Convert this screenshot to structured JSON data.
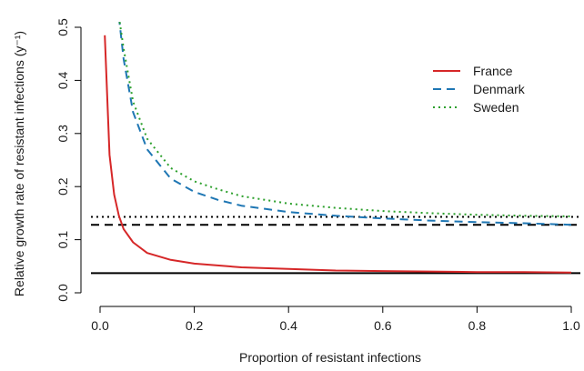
{
  "chart_data": {
    "type": "line",
    "xlabel": "Proportion of resistant infections",
    "ylabel": "Relative growth rate of resistant infections (y⁻¹)",
    "xlim": [
      0.0,
      1.0
    ],
    "ylim": [
      0.0,
      0.5
    ],
    "xticks": [
      "0.0",
      "0.2",
      "0.4",
      "0.6",
      "0.8",
      "1.0"
    ],
    "yticks": [
      "0.0",
      "0.1",
      "0.2",
      "0.3",
      "0.4",
      "0.5"
    ],
    "grid": false,
    "legend_position": "top-right",
    "series": [
      {
        "name": "France",
        "color": "#d62728",
        "dash": "solid",
        "x": [
          0.01,
          0.02,
          0.03,
          0.04,
          0.05,
          0.07,
          0.1,
          0.15,
          0.2,
          0.3,
          0.4,
          0.5,
          0.6,
          0.7,
          0.8,
          0.9,
          1.0
        ],
        "y": [
          0.485,
          0.26,
          0.185,
          0.145,
          0.12,
          0.095,
          0.075,
          0.062,
          0.055,
          0.048,
          0.045,
          0.042,
          0.041,
          0.04,
          0.039,
          0.039,
          0.038
        ]
      },
      {
        "name": "Denmark",
        "color": "#1f77b4",
        "dash": "dashed",
        "x": [
          0.04,
          0.05,
          0.07,
          0.1,
          0.15,
          0.2,
          0.25,
          0.3,
          0.4,
          0.5,
          0.6,
          0.7,
          0.8,
          0.9,
          1.0
        ],
        "y": [
          0.52,
          0.44,
          0.34,
          0.27,
          0.215,
          0.19,
          0.175,
          0.164,
          0.152,
          0.145,
          0.14,
          0.136,
          0.133,
          0.131,
          0.128
        ]
      },
      {
        "name": "Sweden",
        "color": "#2ca02c",
        "dash": "dotted",
        "x": [
          0.04,
          0.05,
          0.07,
          0.1,
          0.15,
          0.2,
          0.25,
          0.3,
          0.4,
          0.5,
          0.6,
          0.7,
          0.8,
          0.9,
          1.0
        ],
        "y": [
          0.52,
          0.46,
          0.36,
          0.29,
          0.235,
          0.21,
          0.195,
          0.182,
          0.168,
          0.16,
          0.154,
          0.15,
          0.147,
          0.145,
          0.144
        ]
      }
    ],
    "reference_lines": [
      {
        "y": 0.037,
        "color": "#000000",
        "dash": "solid"
      },
      {
        "y": 0.128,
        "color": "#000000",
        "dash": "dashed"
      },
      {
        "y": 0.143,
        "color": "#000000",
        "dash": "dotted"
      }
    ]
  }
}
